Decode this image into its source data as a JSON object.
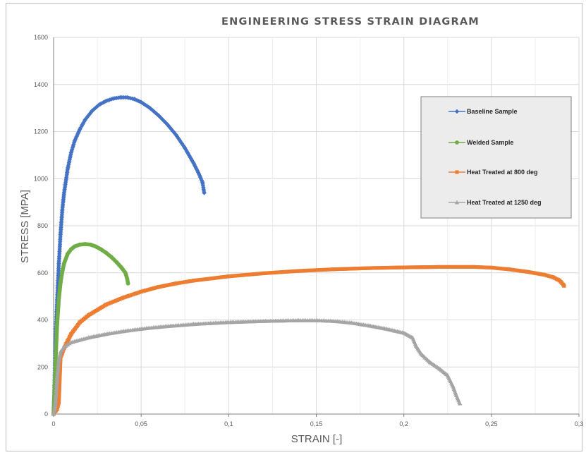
{
  "chart_data": {
    "type": "scatter",
    "title": "ENGINEERING STRESS STRAIN DIAGRAM",
    "xlabel": "STRAIN [-]",
    "ylabel": "STRESS [MPA]",
    "xlim": [
      0,
      0.3
    ],
    "ylim": [
      0,
      1600
    ],
    "xticks": [
      0,
      0.05,
      0.1,
      0.15,
      0.2,
      0.25,
      0.3
    ],
    "xtick_labels": [
      "0",
      "0,05",
      "0,1",
      "0,15",
      "0,2",
      "0,25",
      "0,3"
    ],
    "yticks": [
      0,
      200,
      400,
      600,
      800,
      1000,
      1200,
      1400,
      1600
    ],
    "ytick_labels": [
      "0",
      "200",
      "400",
      "600",
      "800",
      "1000",
      "1200",
      "1400",
      "1600"
    ],
    "grid": true,
    "legend_position": "top-right",
    "series": [
      {
        "name": "Baseline Sample",
        "color": "#4472c4",
        "marker": "diamond",
        "points": [
          [
            0,
            0
          ],
          [
            0.0005,
            120
          ],
          [
            0.001,
            300
          ],
          [
            0.002,
            480
          ],
          [
            0.003,
            640
          ],
          [
            0.004,
            770
          ],
          [
            0.005,
            870
          ],
          [
            0.006,
            940
          ],
          [
            0.008,
            1040
          ],
          [
            0.01,
            1110
          ],
          [
            0.012,
            1160
          ],
          [
            0.015,
            1210
          ],
          [
            0.018,
            1250
          ],
          [
            0.022,
            1288
          ],
          [
            0.026,
            1314
          ],
          [
            0.03,
            1330
          ],
          [
            0.034,
            1340
          ],
          [
            0.038,
            1345
          ],
          [
            0.042,
            1345
          ],
          [
            0.046,
            1338
          ],
          [
            0.05,
            1325
          ],
          [
            0.055,
            1300
          ],
          [
            0.06,
            1268
          ],
          [
            0.065,
            1230
          ],
          [
            0.07,
            1185
          ],
          [
            0.075,
            1130
          ],
          [
            0.08,
            1065
          ],
          [
            0.083,
            1020
          ],
          [
            0.085,
            985
          ],
          [
            0.086,
            940
          ]
        ]
      },
      {
        "name": "Welded Sample",
        "color": "#70ad47",
        "marker": "circle",
        "points": [
          [
            0,
            0
          ],
          [
            0.001,
            200
          ],
          [
            0.002,
            380
          ],
          [
            0.003,
            490
          ],
          [
            0.004,
            560
          ],
          [
            0.005,
            605
          ],
          [
            0.006,
            640
          ],
          [
            0.008,
            680
          ],
          [
            0.01,
            700
          ],
          [
            0.012,
            712
          ],
          [
            0.015,
            720
          ],
          [
            0.018,
            722
          ],
          [
            0.021,
            720
          ],
          [
            0.024,
            712
          ],
          [
            0.027,
            700
          ],
          [
            0.03,
            685
          ],
          [
            0.033,
            667
          ],
          [
            0.036,
            645
          ],
          [
            0.039,
            620
          ],
          [
            0.041,
            600
          ],
          [
            0.042,
            575
          ],
          [
            0.0425,
            555
          ]
        ]
      },
      {
        "name": "Heat Treated at 800 deg",
        "color": "#ed7d31",
        "marker": "square",
        "points": [
          [
            0,
            0
          ],
          [
            0.002,
            20
          ],
          [
            0.003,
            50
          ],
          [
            0.004,
            240
          ],
          [
            0.006,
            280
          ],
          [
            0.008,
            310
          ],
          [
            0.01,
            340
          ],
          [
            0.015,
            390
          ],
          [
            0.02,
            420
          ],
          [
            0.03,
            465
          ],
          [
            0.04,
            495
          ],
          [
            0.05,
            520
          ],
          [
            0.06,
            540
          ],
          [
            0.07,
            555
          ],
          [
            0.08,
            567
          ],
          [
            0.1,
            585
          ],
          [
            0.12,
            598
          ],
          [
            0.14,
            608
          ],
          [
            0.16,
            615
          ],
          [
            0.18,
            620
          ],
          [
            0.2,
            623
          ],
          [
            0.22,
            625
          ],
          [
            0.24,
            625
          ],
          [
            0.25,
            622
          ],
          [
            0.26,
            615
          ],
          [
            0.27,
            605
          ],
          [
            0.28,
            592
          ],
          [
            0.285,
            582
          ],
          [
            0.289,
            567
          ],
          [
            0.291,
            550
          ],
          [
            0.2915,
            545
          ]
        ]
      },
      {
        "name": "Heat Treated at 1250 deg",
        "color": "#a5a5a5",
        "marker": "triangle",
        "points": [
          [
            0,
            0
          ],
          [
            0.001,
            40
          ],
          [
            0.002,
            150
          ],
          [
            0.003,
            230
          ],
          [
            0.004,
            265
          ],
          [
            0.006,
            285
          ],
          [
            0.008,
            295
          ],
          [
            0.01,
            305
          ],
          [
            0.015,
            315
          ],
          [
            0.02,
            325
          ],
          [
            0.03,
            340
          ],
          [
            0.04,
            352
          ],
          [
            0.05,
            362
          ],
          [
            0.06,
            370
          ],
          [
            0.08,
            382
          ],
          [
            0.1,
            390
          ],
          [
            0.12,
            395
          ],
          [
            0.14,
            398
          ],
          [
            0.15,
            398
          ],
          [
            0.16,
            395
          ],
          [
            0.17,
            388
          ],
          [
            0.18,
            376
          ],
          [
            0.19,
            362
          ],
          [
            0.2,
            345
          ],
          [
            0.205,
            325
          ],
          [
            0.207,
            290
          ],
          [
            0.21,
            255
          ],
          [
            0.215,
            220
          ],
          [
            0.22,
            195
          ],
          [
            0.225,
            165
          ],
          [
            0.228,
            120
          ],
          [
            0.23,
            80
          ],
          [
            0.232,
            45
          ]
        ]
      }
    ]
  }
}
